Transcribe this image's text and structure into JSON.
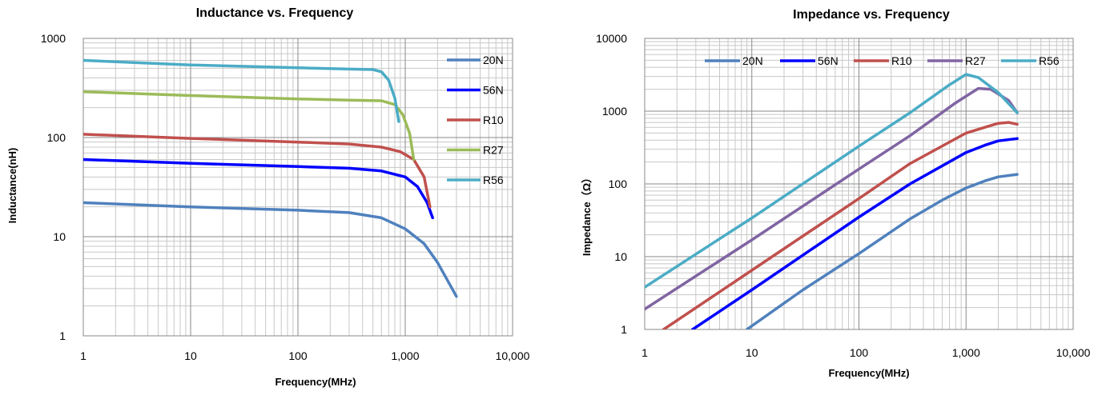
{
  "chart_data": [
    {
      "type": "line",
      "title": "Inductance vs. Frequency",
      "xlabel": "Frequency(MHz)",
      "ylabel": "Inductance(nH)",
      "x_scale": "log",
      "y_scale": "log",
      "xlim": [
        1,
        10000
      ],
      "ylim": [
        1,
        1000
      ],
      "x_ticks": [
        1,
        10,
        100,
        1000,
        10000
      ],
      "x_tick_labels": [
        "1",
        "10",
        "100",
        "1,000",
        "10,000"
      ],
      "y_ticks": [
        1,
        10,
        100,
        1000
      ],
      "y_tick_labels": [
        "1",
        "10",
        "100",
        "1000"
      ],
      "grid": true,
      "legend_position": "right",
      "series": [
        {
          "name": "20N",
          "color": "#4F81BD",
          "points": [
            [
              1,
              22
            ],
            [
              10,
              20
            ],
            [
              100,
              18.5
            ],
            [
              300,
              17.5
            ],
            [
              600,
              15.5
            ],
            [
              1000,
              12
            ],
            [
              1500,
              8.5
            ],
            [
              2000,
              5.5
            ],
            [
              3000,
              2.5
            ]
          ]
        },
        {
          "name": "56N",
          "color": "#0000FF",
          "points": [
            [
              1,
              60
            ],
            [
              10,
              55
            ],
            [
              100,
              51
            ],
            [
              300,
              49
            ],
            [
              600,
              46
            ],
            [
              1000,
              40
            ],
            [
              1300,
              32
            ],
            [
              1600,
              22
            ],
            [
              1800,
              15.5
            ]
          ]
        },
        {
          "name": "R10",
          "color": "#C0504D",
          "points": [
            [
              1,
              108
            ],
            [
              10,
              98
            ],
            [
              100,
              90
            ],
            [
              300,
              86
            ],
            [
              600,
              80
            ],
            [
              900,
              72
            ],
            [
              1200,
              60
            ],
            [
              1500,
              40
            ],
            [
              1700,
              20
            ]
          ]
        },
        {
          "name": "R27",
          "color": "#9BBB59",
          "points": [
            [
              1,
              290
            ],
            [
              10,
              265
            ],
            [
              100,
              245
            ],
            [
              300,
              238
            ],
            [
              600,
              235
            ],
            [
              800,
              215
            ],
            [
              950,
              170
            ],
            [
              1100,
              110
            ],
            [
              1200,
              60
            ]
          ]
        },
        {
          "name": "R56",
          "color": "#4BACC6",
          "points": [
            [
              1,
              600
            ],
            [
              10,
              540
            ],
            [
              100,
              505
            ],
            [
              300,
              490
            ],
            [
              500,
              485
            ],
            [
              600,
              460
            ],
            [
              700,
              380
            ],
            [
              800,
              250
            ],
            [
              870,
              145
            ]
          ]
        }
      ]
    },
    {
      "type": "line",
      "title": "Impedance vs. Frequency",
      "xlabel": "Frequency(MHz)",
      "ylabel": "Impedance（Ω）",
      "x_scale": "log",
      "y_scale": "log",
      "xlim": [
        1,
        10000
      ],
      "ylim": [
        1,
        10000
      ],
      "x_ticks": [
        1,
        10,
        100,
        1000,
        10000
      ],
      "x_tick_labels": [
        "1",
        "10",
        "100",
        "1,000",
        "10,000"
      ],
      "y_ticks": [
        1,
        10,
        100,
        1000,
        10000
      ],
      "y_tick_labels": [
        "1",
        "10",
        "100",
        "1000",
        "10000"
      ],
      "grid": true,
      "legend_position": "top",
      "series": [
        {
          "name": "20N",
          "color": "#4F81BD",
          "points": [
            [
              9,
              1
            ],
            [
              30,
              3.5
            ],
            [
              100,
              11
            ],
            [
              300,
              33
            ],
            [
              600,
              60
            ],
            [
              1000,
              88
            ],
            [
              1500,
              110
            ],
            [
              2000,
              125
            ],
            [
              3000,
              135
            ]
          ]
        },
        {
          "name": "56N",
          "color": "#0000FF",
          "points": [
            [
              2.8,
              1
            ],
            [
              10,
              3.5
            ],
            [
              100,
              35
            ],
            [
              300,
              100
            ],
            [
              1000,
              270
            ],
            [
              1500,
              340
            ],
            [
              2000,
              390
            ],
            [
              3000,
              420
            ]
          ]
        },
        {
          "name": "R10",
          "color": "#C0504D",
          "points": [
            [
              1.5,
              1
            ],
            [
              10,
              6.5
            ],
            [
              100,
              63
            ],
            [
              300,
              190
            ],
            [
              1000,
              500
            ],
            [
              1500,
              600
            ],
            [
              2000,
              680
            ],
            [
              2500,
              700
            ],
            [
              3000,
              660
            ]
          ]
        },
        {
          "name": "R27",
          "color": "#8064A2",
          "points": [
            [
              1,
              1.9
            ],
            [
              10,
              17
            ],
            [
              100,
              160
            ],
            [
              300,
              460
            ],
            [
              800,
              1300
            ],
            [
              1300,
              2050
            ],
            [
              1700,
              2000
            ],
            [
              2500,
              1400
            ],
            [
              3000,
              950
            ]
          ]
        },
        {
          "name": "R56",
          "color": "#4BACC6",
          "points": [
            [
              1,
              3.8
            ],
            [
              10,
              34
            ],
            [
              100,
              330
            ],
            [
              300,
              950
            ],
            [
              700,
              2300
            ],
            [
              1000,
              3200
            ],
            [
              1300,
              2900
            ],
            [
              2000,
              1800
            ],
            [
              3000,
              950
            ]
          ]
        }
      ]
    }
  ]
}
